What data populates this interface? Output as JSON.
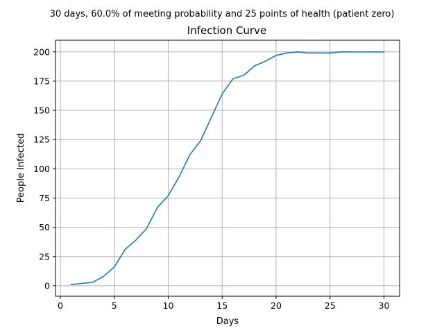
{
  "figure": {
    "suptitle": "30 days, 60.0% of meeting probability and 25 points of health (patient zero)"
  },
  "chart_data": {
    "type": "line",
    "title": "Infection Curve",
    "xlabel": "Days",
    "ylabel": "People Infected",
    "xlim": [
      -0.45,
      31.45
    ],
    "ylim": [
      -8.95,
      209.95
    ],
    "xticks": [
      0,
      5,
      10,
      15,
      20,
      25,
      30
    ],
    "yticks": [
      0,
      25,
      50,
      75,
      100,
      125,
      150,
      175,
      200
    ],
    "grid": true,
    "line_color": "#1f77b4",
    "x": [
      1,
      2,
      3,
      4,
      5,
      6,
      7,
      8,
      9,
      10,
      11,
      12,
      13,
      14,
      15,
      16,
      17,
      18,
      19,
      20,
      21,
      22,
      23,
      24,
      25,
      26,
      27,
      28,
      29,
      30
    ],
    "y": [
      1,
      2,
      3,
      8,
      16,
      31,
      39,
      49,
      67,
      77,
      93,
      112,
      124,
      144,
      164,
      177,
      180,
      188,
      192,
      197,
      199,
      200,
      199,
      199,
      199,
      200,
      200,
      200,
      200,
      200
    ]
  }
}
